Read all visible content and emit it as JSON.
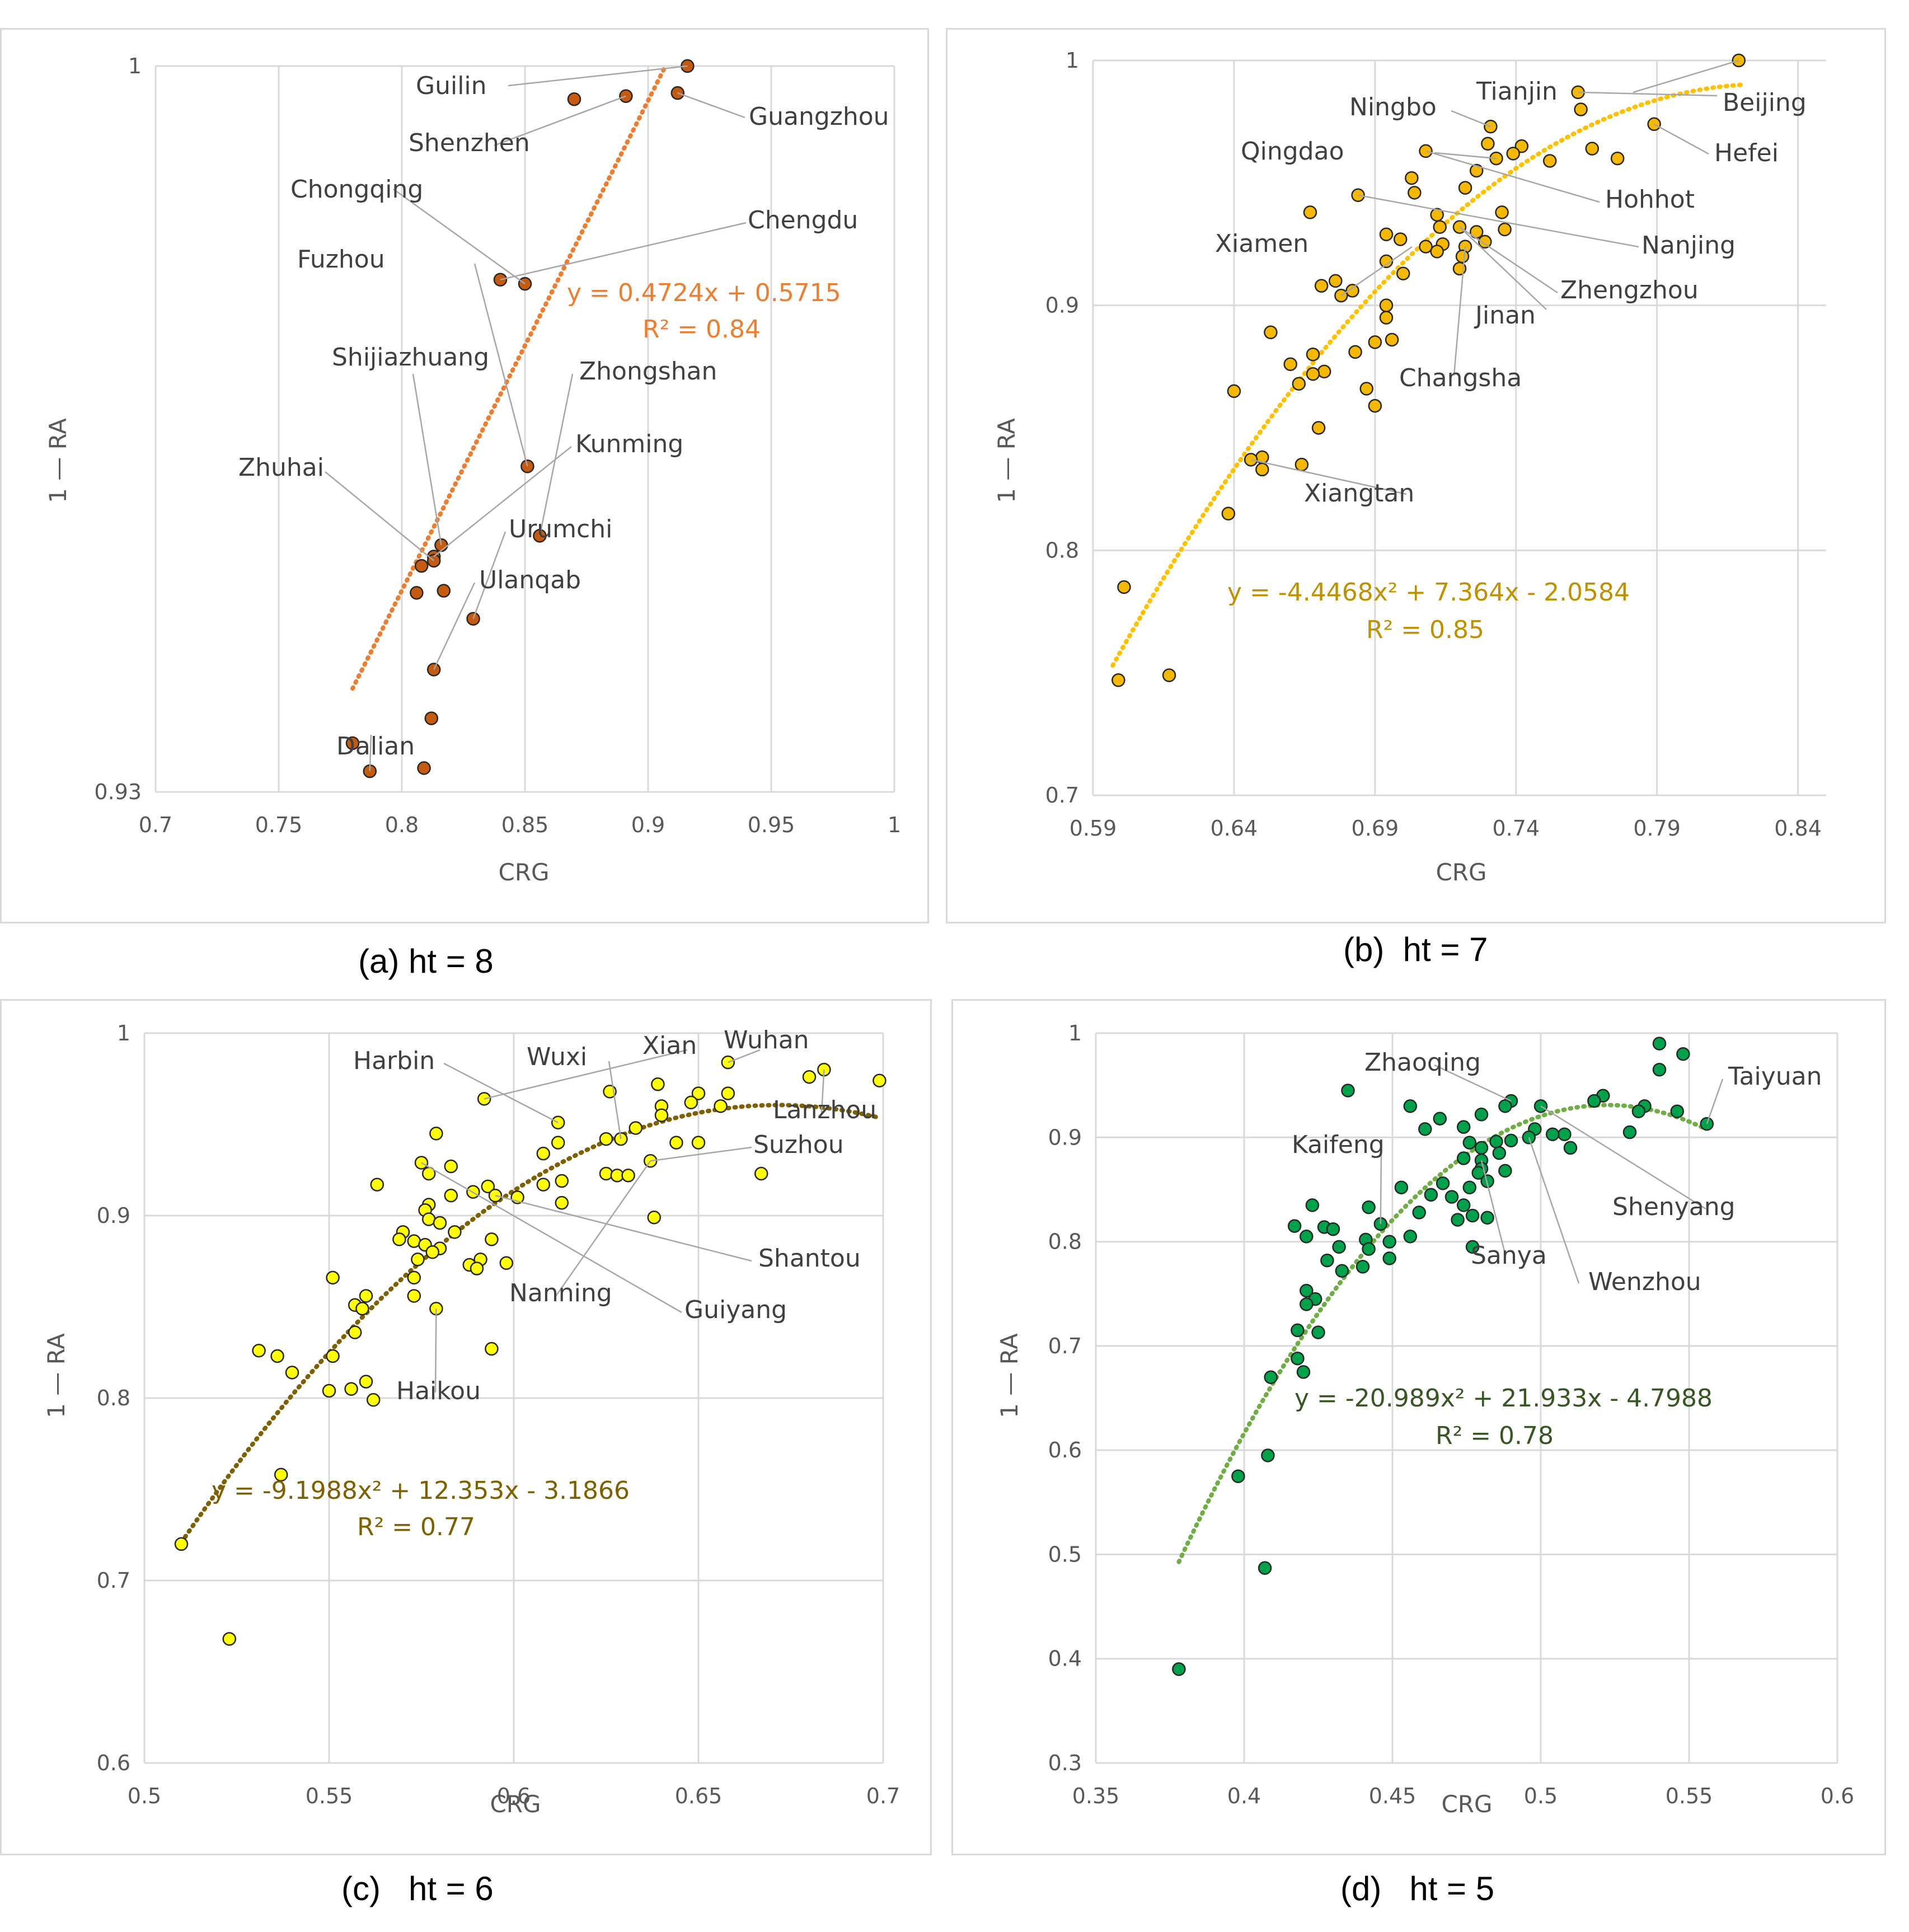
{
  "charts": [
    {
      "caption": "(a) ht = 8",
      "chart_data": {
        "type": "scatter",
        "xlabel": "CRG",
        "ylabel": "1 — RA",
        "xlim": [
          0.7,
          1.0
        ],
        "ylim": [
          0.93,
          1.0
        ],
        "xticks": [
          0.7,
          0.75,
          0.8,
          0.85,
          0.9,
          0.95,
          1.0
        ],
        "xtick_labels": [
          "0.7",
          "0.75",
          "0.8",
          "0.85",
          "0.9",
          "0.95",
          "1"
        ],
        "yticks": [
          0.93,
          1.0
        ],
        "ytick_labels": [
          "0.93",
          "1"
        ],
        "color": "#c55a11",
        "trend_color": "#ed7d31",
        "trend": {
          "kind": "linear",
          "coef": [
            0.5715,
            0.4724
          ],
          "x_range": [
            0.78,
            0.907
          ]
        },
        "equation": "y = 0.4724x + 0.5715",
        "r2": "R² = 0.84",
        "points": [
          [
            0.916,
            1.0
          ],
          [
            0.891,
            0.9971
          ],
          [
            0.87,
            0.9968
          ],
          [
            0.912,
            0.9974
          ],
          [
            0.84,
            0.9794
          ],
          [
            0.85,
            0.979
          ],
          [
            0.851,
            0.9614
          ],
          [
            0.856,
            0.9547
          ],
          [
            0.816,
            0.9538
          ],
          [
            0.813,
            0.9527
          ],
          [
            0.813,
            0.9523
          ],
          [
            0.808,
            0.9518
          ],
          [
            0.806,
            0.9492
          ],
          [
            0.817,
            0.9494
          ],
          [
            0.829,
            0.9467
          ],
          [
            0.813,
            0.9418
          ],
          [
            0.812,
            0.9371
          ],
          [
            0.78,
            0.9347
          ],
          [
            0.787,
            0.932
          ],
          [
            0.809,
            0.9323
          ]
        ],
        "labels": [
          "Guilin",
          "Shenzhen",
          "Guangzhou",
          "Chengdu",
          "Chongqing",
          "Fuzhou",
          "Shijiazhuang",
          "Zhongshan",
          "Kunming",
          "Zhuhai",
          "Urumchi",
          "Ulanqab",
          "Dalian"
        ]
      }
    },
    {
      "caption": "(b)  ht = 7",
      "chart_data": {
        "type": "scatter",
        "xlabel": "CRG",
        "ylabel": "1 — RA",
        "xlim": [
          0.59,
          0.85
        ],
        "ylim": [
          0.7,
          1.0
        ],
        "xticks": [
          0.59,
          0.64,
          0.69,
          0.74,
          0.79,
          0.84
        ],
        "xtick_labels": [
          "0.59",
          "0.64",
          "0.69",
          "0.74",
          "0.79",
          "0.84"
        ],
        "yticks": [
          0.7,
          0.8,
          0.9,
          1.0
        ],
        "ytick_labels": [
          "0.7",
          "0.8",
          "0.9",
          "1"
        ],
        "color": "#f5b800",
        "trend_color": "#ffc000",
        "trend": {
          "kind": "poly2",
          "coef": [
            -2.0584,
            7.364,
            -4.4468
          ],
          "x_range": [
            0.597,
            0.82
          ]
        },
        "equation": "y = -4.4468x² + 7.364x - 2.0584",
        "r2": "R² = 0.85",
        "points": [
          [
            0.819,
            1.0
          ],
          [
            0.762,
            0.987
          ],
          [
            0.763,
            0.98
          ],
          [
            0.789,
            0.974
          ],
          [
            0.731,
            0.973
          ],
          [
            0.73,
            0.966
          ],
          [
            0.742,
            0.965
          ],
          [
            0.739,
            0.962
          ],
          [
            0.767,
            0.964
          ],
          [
            0.708,
            0.963
          ],
          [
            0.776,
            0.96
          ],
          [
            0.752,
            0.959
          ],
          [
            0.733,
            0.96
          ],
          [
            0.726,
            0.955
          ],
          [
            0.703,
            0.952
          ],
          [
            0.722,
            0.948
          ],
          [
            0.704,
            0.946
          ],
          [
            0.684,
            0.945
          ],
          [
            0.667,
            0.938
          ],
          [
            0.735,
            0.938
          ],
          [
            0.712,
            0.937
          ],
          [
            0.713,
            0.932
          ],
          [
            0.72,
            0.932
          ],
          [
            0.736,
            0.931
          ],
          [
            0.726,
            0.93
          ],
          [
            0.694,
            0.929
          ],
          [
            0.699,
            0.927
          ],
          [
            0.729,
            0.926
          ],
          [
            0.722,
            0.924
          ],
          [
            0.714,
            0.925
          ],
          [
            0.708,
            0.924
          ],
          [
            0.712,
            0.922
          ],
          [
            0.721,
            0.92
          ],
          [
            0.694,
            0.918
          ],
          [
            0.72,
            0.915
          ],
          [
            0.7,
            0.913
          ],
          [
            0.676,
            0.91
          ],
          [
            0.671,
            0.908
          ],
          [
            0.682,
            0.906
          ],
          [
            0.678,
            0.904
          ],
          [
            0.694,
            0.9
          ],
          [
            0.694,
            0.895
          ],
          [
            0.653,
            0.889
          ],
          [
            0.696,
            0.886
          ],
          [
            0.69,
            0.885
          ],
          [
            0.683,
            0.881
          ],
          [
            0.668,
            0.88
          ],
          [
            0.66,
            0.876
          ],
          [
            0.672,
            0.873
          ],
          [
            0.668,
            0.872
          ],
          [
            0.663,
            0.868
          ],
          [
            0.687,
            0.866
          ],
          [
            0.64,
            0.865
          ],
          [
            0.69,
            0.859
          ],
          [
            0.67,
            0.85
          ],
          [
            0.65,
            0.838
          ],
          [
            0.646,
            0.837
          ],
          [
            0.65,
            0.833
          ],
          [
            0.664,
            0.835
          ],
          [
            0.638,
            0.815
          ],
          [
            0.601,
            0.785
          ],
          [
            0.617,
            0.749
          ],
          [
            0.599,
            0.747
          ]
        ],
        "labels": [
          "Tianjin",
          "Beijing",
          "Ningbo",
          "Hefei",
          "Qingdao",
          "Hohhot",
          "Nanjing",
          "Xiamen",
          "Zhengzhou",
          "Jinan",
          "Changsha",
          "Xiangtan"
        ]
      }
    },
    {
      "caption": "(c)   ht = 6",
      "chart_data": {
        "type": "scatter",
        "xlabel": "CRG",
        "ylabel": "1 — RA",
        "xlim": [
          0.5,
          0.7
        ],
        "ylim": [
          0.6,
          1.0
        ],
        "xticks": [
          0.5,
          0.55,
          0.6,
          0.65,
          0.7
        ],
        "xtick_labels": [
          "0.5",
          "0.55",
          "0.6",
          "0.65",
          "0.7"
        ],
        "yticks": [
          0.6,
          0.7,
          0.8,
          0.9,
          1.0
        ],
        "ytick_labels": [
          "0.6",
          "0.7",
          "0.8",
          "0.9",
          "1"
        ],
        "color": "#ffff00",
        "trend_color": "#7f6000",
        "trend": {
          "kind": "poly2",
          "coef": [
            -3.1866,
            12.353,
            -9.1988
          ],
          "x_range": [
            0.51,
            0.699
          ]
        },
        "equation": "y = -9.1988x² + 12.353x - 3.1866",
        "r2": "R² = 0.77",
        "points": [
          [
            0.658,
            0.984
          ],
          [
            0.684,
            0.98
          ],
          [
            0.68,
            0.976
          ],
          [
            0.699,
            0.974
          ],
          [
            0.639,
            0.972
          ],
          [
            0.626,
            0.968
          ],
          [
            0.65,
            0.967
          ],
          [
            0.658,
            0.967
          ],
          [
            0.592,
            0.964
          ],
          [
            0.64,
            0.96
          ],
          [
            0.656,
            0.96
          ],
          [
            0.648,
            0.962
          ],
          [
            0.64,
            0.955
          ],
          [
            0.612,
            0.951
          ],
          [
            0.633,
            0.948
          ],
          [
            0.579,
            0.945
          ],
          [
            0.625,
            0.942
          ],
          [
            0.629,
            0.942
          ],
          [
            0.612,
            0.94
          ],
          [
            0.644,
            0.94
          ],
          [
            0.65,
            0.94
          ],
          [
            0.608,
            0.934
          ],
          [
            0.637,
            0.93
          ],
          [
            0.575,
            0.929
          ],
          [
            0.583,
            0.927
          ],
          [
            0.577,
            0.923
          ],
          [
            0.625,
            0.923
          ],
          [
            0.628,
            0.922
          ],
          [
            0.631,
            0.922
          ],
          [
            0.667,
            0.923
          ],
          [
            0.613,
            0.919
          ],
          [
            0.563,
            0.917
          ],
          [
            0.593,
            0.916
          ],
          [
            0.608,
            0.917
          ],
          [
            0.589,
            0.913
          ],
          [
            0.583,
            0.911
          ],
          [
            0.595,
            0.911
          ],
          [
            0.613,
            0.907
          ],
          [
            0.577,
            0.906
          ],
          [
            0.601,
            0.91
          ],
          [
            0.576,
            0.903
          ],
          [
            0.638,
            0.899
          ],
          [
            0.577,
            0.898
          ],
          [
            0.58,
            0.896
          ],
          [
            0.584,
            0.891
          ],
          [
            0.57,
            0.891
          ],
          [
            0.573,
            0.886
          ],
          [
            0.569,
            0.887
          ],
          [
            0.576,
            0.884
          ],
          [
            0.594,
            0.887
          ],
          [
            0.58,
            0.882
          ],
          [
            0.578,
            0.88
          ],
          [
            0.591,
            0.876
          ],
          [
            0.574,
            0.876
          ],
          [
            0.588,
            0.873
          ],
          [
            0.59,
            0.871
          ],
          [
            0.598,
            0.874
          ],
          [
            0.573,
            0.866
          ],
          [
            0.551,
            0.866
          ],
          [
            0.573,
            0.856
          ],
          [
            0.56,
            0.856
          ],
          [
            0.557,
            0.851
          ],
          [
            0.559,
            0.849
          ],
          [
            0.579,
            0.849
          ],
          [
            0.557,
            0.836
          ],
          [
            0.594,
            0.827
          ],
          [
            0.531,
            0.826
          ],
          [
            0.536,
            0.823
          ],
          [
            0.551,
            0.823
          ],
          [
            0.54,
            0.814
          ],
          [
            0.56,
            0.809
          ],
          [
            0.556,
            0.805
          ],
          [
            0.55,
            0.804
          ],
          [
            0.562,
            0.799
          ],
          [
            0.537,
            0.758
          ],
          [
            0.51,
            0.72
          ],
          [
            0.523,
            0.668
          ]
        ],
        "labels": [
          "Harbin",
          "Wuxi",
          "Xian",
          "Wuhan",
          "Lanzhou",
          "Suzhou",
          "Shantou",
          "Nanning",
          "Guiyang",
          "Haikou"
        ]
      }
    },
    {
      "caption": "(d)   ht = 5",
      "chart_data": {
        "type": "scatter",
        "xlabel": "CRG",
        "ylabel": "1 — RA",
        "xlim": [
          0.35,
          0.6
        ],
        "ylim": [
          0.3,
          1.0
        ],
        "xticks": [
          0.35,
          0.4,
          0.45,
          0.5,
          0.55,
          0.6
        ],
        "xtick_labels": [
          "0.35",
          "0.4",
          "0.45",
          "0.5",
          "0.55",
          "0.6"
        ],
        "yticks": [
          0.3,
          0.4,
          0.5,
          0.6,
          0.7,
          0.8,
          0.9,
          1.0
        ],
        "ytick_labels": [
          "0.3",
          "0.4",
          "0.5",
          "0.6",
          "0.7",
          "0.8",
          "0.9",
          "1"
        ],
        "color": "#00a14b",
        "trend_color": "#70ad47",
        "trend": {
          "kind": "poly2",
          "coef": [
            -4.7988,
            21.933,
            -20.989
          ],
          "x_range": [
            0.378,
            0.555
          ]
        },
        "equation": "y = -20.989x² + 21.933x - 4.7988",
        "r2": "R² = 0.78",
        "points": [
          [
            0.54,
            0.99
          ],
          [
            0.548,
            0.98
          ],
          [
            0.54,
            0.965
          ],
          [
            0.435,
            0.945
          ],
          [
            0.49,
            0.935
          ],
          [
            0.456,
            0.93
          ],
          [
            0.521,
            0.94
          ],
          [
            0.518,
            0.935
          ],
          [
            0.535,
            0.93
          ],
          [
            0.533,
            0.925
          ],
          [
            0.546,
            0.925
          ],
          [
            0.488,
            0.93
          ],
          [
            0.5,
            0.93
          ],
          [
            0.466,
            0.918
          ],
          [
            0.48,
            0.922
          ],
          [
            0.556,
            0.913
          ],
          [
            0.53,
            0.905
          ],
          [
            0.461,
            0.908
          ],
          [
            0.474,
            0.91
          ],
          [
            0.498,
            0.908
          ],
          [
            0.508,
            0.903
          ],
          [
            0.504,
            0.903
          ],
          [
            0.496,
            0.9
          ],
          [
            0.49,
            0.897
          ],
          [
            0.485,
            0.896
          ],
          [
            0.476,
            0.895
          ],
          [
            0.51,
            0.89
          ],
          [
            0.48,
            0.89
          ],
          [
            0.486,
            0.885
          ],
          [
            0.474,
            0.88
          ],
          [
            0.48,
            0.878
          ],
          [
            0.48,
            0.87
          ],
          [
            0.488,
            0.868
          ],
          [
            0.479,
            0.866
          ],
          [
            0.467,
            0.856
          ],
          [
            0.482,
            0.858
          ],
          [
            0.476,
            0.852
          ],
          [
            0.453,
            0.852
          ],
          [
            0.47,
            0.843
          ],
          [
            0.463,
            0.845
          ],
          [
            0.474,
            0.835
          ],
          [
            0.423,
            0.835
          ],
          [
            0.442,
            0.833
          ],
          [
            0.459,
            0.828
          ],
          [
            0.477,
            0.825
          ],
          [
            0.482,
            0.823
          ],
          [
            0.472,
            0.821
          ],
          [
            0.417,
            0.815
          ],
          [
            0.427,
            0.814
          ],
          [
            0.43,
            0.812
          ],
          [
            0.446,
            0.817
          ],
          [
            0.441,
            0.802
          ],
          [
            0.421,
            0.805
          ],
          [
            0.456,
            0.805
          ],
          [
            0.449,
            0.8
          ],
          [
            0.432,
            0.795
          ],
          [
            0.442,
            0.793
          ],
          [
            0.477,
            0.795
          ],
          [
            0.449,
            0.784
          ],
          [
            0.428,
            0.782
          ],
          [
            0.44,
            0.776
          ],
          [
            0.433,
            0.772
          ],
          [
            0.421,
            0.753
          ],
          [
            0.424,
            0.745
          ],
          [
            0.421,
            0.74
          ],
          [
            0.425,
            0.713
          ],
          [
            0.418,
            0.715
          ],
          [
            0.418,
            0.688
          ],
          [
            0.42,
            0.675
          ],
          [
            0.409,
            0.67
          ],
          [
            0.408,
            0.595
          ],
          [
            0.398,
            0.575
          ],
          [
            0.407,
            0.487
          ],
          [
            0.378,
            0.39
          ]
        ],
        "labels": [
          "Zhaoqing",
          "Taiyuan",
          "Kaifeng",
          "Shenyang",
          "Sanya",
          "Wenzhou"
        ]
      }
    }
  ]
}
